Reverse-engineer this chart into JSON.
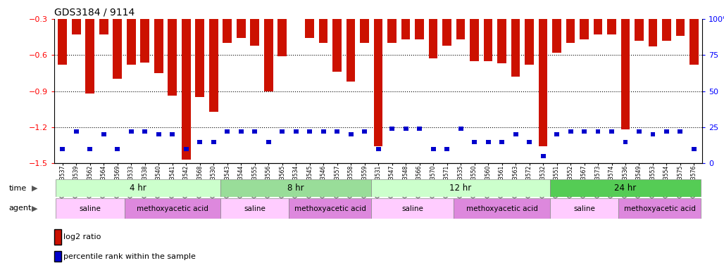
{
  "title": "GDS3184 / 9114",
  "samples": [
    "GSM253537",
    "GSM253539",
    "GSM253562",
    "GSM253564",
    "GSM253569",
    "GSM253533",
    "GSM253538",
    "GSM253540",
    "GSM253541",
    "GSM253542",
    "GSM253568",
    "GSM253530",
    "GSM253543",
    "GSM253544",
    "GSM253555",
    "GSM253556",
    "GSM253565",
    "GSM253534",
    "GSM253545",
    "GSM253546",
    "GSM253557",
    "GSM253558",
    "GSM253559",
    "GSM253531",
    "GSM253547",
    "GSM253548",
    "GSM253566",
    "GSM253570",
    "GSM253571",
    "GSM253535",
    "GSM253550",
    "GSM253560",
    "GSM253561",
    "GSM253563",
    "GSM253572",
    "GSM253532",
    "GSM253551",
    "GSM253552",
    "GSM253567",
    "GSM253573",
    "GSM253574",
    "GSM253536",
    "GSM253549",
    "GSM253553",
    "GSM253554",
    "GSM253575",
    "GSM253576"
  ],
  "log2_values": [
    -0.68,
    -0.43,
    -0.92,
    -0.43,
    -0.8,
    -0.68,
    -0.66,
    -0.75,
    -0.94,
    -1.47,
    -0.95,
    -1.07,
    -0.5,
    -0.46,
    -0.52,
    -0.9,
    -0.61,
    -0.3,
    -0.46,
    -0.5,
    -0.74,
    -0.82,
    -0.5,
    -1.36,
    -0.5,
    -0.47,
    -0.47,
    -0.63,
    -0.52,
    -0.47,
    -0.65,
    -0.65,
    -0.67,
    -0.78,
    -0.68,
    -1.36,
    -0.58,
    -0.5,
    -0.47,
    -0.43,
    -0.43,
    -1.22,
    -0.48,
    -0.53,
    -0.48,
    -0.44,
    -0.68
  ],
  "percentile_values": [
    10,
    22,
    10,
    20,
    10,
    22,
    22,
    20,
    20,
    10,
    15,
    15,
    22,
    22,
    22,
    15,
    22,
    22,
    22,
    22,
    22,
    20,
    22,
    10,
    24,
    24,
    24,
    10,
    10,
    24,
    15,
    15,
    15,
    20,
    15,
    5,
    20,
    22,
    22,
    22,
    22,
    15,
    22,
    20,
    22,
    22,
    10
  ],
  "time_groups": [
    {
      "label": "4 hr",
      "start": 0,
      "end": 12,
      "color": "#ccffcc"
    },
    {
      "label": "8 hr",
      "start": 12,
      "end": 23,
      "color": "#99dd99"
    },
    {
      "label": "12 hr",
      "start": 23,
      "end": 36,
      "color": "#ccffcc"
    },
    {
      "label": "24 hr",
      "start": 36,
      "end": 47,
      "color": "#55cc55"
    }
  ],
  "agent_groups": [
    {
      "label": "saline",
      "start": 0,
      "end": 5,
      "color": "#ffccff"
    },
    {
      "label": "methoxyacetic acid",
      "start": 5,
      "end": 12,
      "color": "#dd88dd"
    },
    {
      "label": "saline",
      "start": 12,
      "end": 17,
      "color": "#ffccff"
    },
    {
      "label": "methoxyacetic acid",
      "start": 17,
      "end": 23,
      "color": "#dd88dd"
    },
    {
      "label": "saline",
      "start": 23,
      "end": 29,
      "color": "#ffccff"
    },
    {
      "label": "methoxyacetic acid",
      "start": 29,
      "end": 36,
      "color": "#dd88dd"
    },
    {
      "label": "saline",
      "start": 36,
      "end": 41,
      "color": "#ffccff"
    },
    {
      "label": "methoxyacetic acid",
      "start": 41,
      "end": 47,
      "color": "#dd88dd"
    }
  ],
  "ymin": -1.5,
  "ymax": -0.3,
  "yticks_left": [
    -1.5,
    -1.2,
    -0.9,
    -0.6,
    -0.3
  ],
  "yticks_right": [
    0,
    25,
    50,
    75,
    100
  ],
  "bar_color": "#cc1100",
  "percentile_color": "#0000cc",
  "grid_lines": [
    -0.6,
    -0.9,
    -1.2
  ],
  "bar_width": 0.65
}
